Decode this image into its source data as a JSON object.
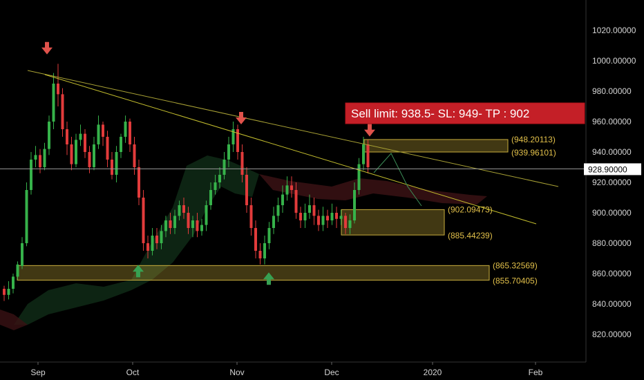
{
  "chart_data": {
    "type": "candlestick",
    "y_ticks": [
      "1020.00000",
      "1000.00000",
      "980.00000",
      "960.00000",
      "940.00000",
      "920.00000",
      "900.00000",
      "880.00000",
      "860.00000",
      "840.00000",
      "820.00000"
    ],
    "y_tick_values": [
      1020,
      1000,
      980,
      960,
      940,
      920,
      900,
      880,
      860,
      840,
      820
    ],
    "x_ticks": [
      "Sep",
      "Oct",
      "Nov",
      "Dec",
      "2020",
      "Feb"
    ],
    "ylim": [
      805,
      1042
    ],
    "current_price": {
      "label": "928.90000",
      "value": 928.9
    },
    "annotation": "Sell limit: 938.5- SL: 949- TP : 902",
    "zones": [
      {
        "top_label": "(948.20113)",
        "bottom_label": "(939.96101)",
        "top": 948.2,
        "bottom": 940.0
      },
      {
        "top_label": "(902.09473)",
        "bottom_label": "(885.44239)",
        "top": 902.1,
        "bottom": 885.4
      },
      {
        "top_label": "(865.32569)",
        "bottom_label": "(855.70405)",
        "top": 865.3,
        "bottom": 855.7
      }
    ],
    "trendlines": [
      {
        "from": [
          "early Sep",
          993
        ],
        "to": [
          "late Jan",
          912
        ]
      },
      {
        "from": [
          "early Sep",
          990
        ],
        "to": [
          "mid Jan",
          894
        ]
      }
    ],
    "markers": [
      {
        "type": "down",
        "near": "Sep peak",
        "value": 1006
      },
      {
        "type": "down",
        "near": "Nov peak",
        "value": 960
      },
      {
        "type": "down",
        "near": "Dec peak",
        "value": 952
      },
      {
        "type": "up",
        "near": "Oct low",
        "value": 864
      },
      {
        "type": "up",
        "near": "Nov low",
        "value": 859
      }
    ],
    "candles": [
      [
        850,
        846,
        852,
        842
      ],
      [
        846,
        850,
        855,
        843
      ],
      [
        850,
        858,
        860,
        847
      ],
      [
        858,
        866,
        868,
        856
      ],
      [
        865,
        880,
        884,
        863
      ],
      [
        880,
        915,
        920,
        878
      ],
      [
        915,
        935,
        940,
        912
      ],
      [
        935,
        938,
        944,
        930
      ],
      [
        938,
        930,
        942,
        926
      ],
      [
        930,
        942,
        946,
        928
      ],
      [
        942,
        960,
        964,
        938
      ],
      [
        960,
        985,
        992,
        955
      ],
      [
        985,
        978,
        998,
        970
      ],
      [
        978,
        955,
        982,
        950
      ],
      [
        955,
        945,
        960,
        938
      ],
      [
        945,
        932,
        950,
        928
      ],
      [
        932,
        948,
        952,
        930
      ],
      [
        948,
        952,
        958,
        944
      ],
      [
        952,
        940,
        955,
        936
      ],
      [
        940,
        930,
        944,
        926
      ],
      [
        930,
        945,
        950,
        928
      ],
      [
        945,
        958,
        964,
        942
      ],
      [
        958,
        950,
        960,
        944
      ],
      [
        950,
        935,
        954,
        930
      ],
      [
        935,
        925,
        940,
        922
      ],
      [
        925,
        940,
        944,
        920
      ],
      [
        940,
        950,
        952,
        936
      ],
      [
        950,
        960,
        964,
        946
      ],
      [
        960,
        945,
        962,
        940
      ],
      [
        945,
        930,
        950,
        925
      ],
      [
        930,
        910,
        935,
        905
      ],
      [
        910,
        880,
        915,
        875
      ],
      [
        880,
        875,
        885,
        870
      ],
      [
        875,
        885,
        890,
        872
      ],
      [
        885,
        880,
        890,
        876
      ],
      [
        880,
        888,
        892,
        876
      ],
      [
        888,
        895,
        898,
        884
      ],
      [
        895,
        890,
        900,
        886
      ],
      [
        890,
        898,
        902,
        886
      ],
      [
        898,
        905,
        908,
        895
      ],
      [
        905,
        900,
        910,
        896
      ],
      [
        900,
        890,
        904,
        886
      ],
      [
        890,
        895,
        898,
        884
      ],
      [
        895,
        888,
        900,
        884
      ],
      [
        888,
        892,
        896,
        885
      ],
      [
        892,
        905,
        908,
        888
      ],
      [
        905,
        915,
        920,
        902
      ],
      [
        915,
        920,
        925,
        912
      ],
      [
        920,
        925,
        930,
        916
      ],
      [
        925,
        935,
        940,
        922
      ],
      [
        935,
        945,
        950,
        930
      ],
      [
        945,
        955,
        960,
        940
      ],
      [
        955,
        940,
        958,
        935
      ],
      [
        940,
        925,
        945,
        920
      ],
      [
        925,
        905,
        930,
        900
      ],
      [
        905,
        890,
        910,
        885
      ],
      [
        890,
        875,
        895,
        870
      ],
      [
        875,
        870,
        880,
        866
      ],
      [
        870,
        880,
        885,
        866
      ],
      [
        880,
        890,
        894,
        876
      ],
      [
        890,
        898,
        904,
        886
      ],
      [
        898,
        905,
        910,
        894
      ],
      [
        905,
        912,
        918,
        900
      ],
      [
        912,
        918,
        924,
        908
      ],
      [
        918,
        915,
        924,
        910
      ],
      [
        915,
        900,
        920,
        896
      ],
      [
        900,
        895,
        904,
        890
      ],
      [
        895,
        900,
        906,
        890
      ],
      [
        900,
        905,
        912,
        896
      ],
      [
        905,
        898,
        910,
        892
      ],
      [
        898,
        892,
        902,
        888
      ],
      [
        892,
        898,
        904,
        888
      ],
      [
        898,
        895,
        902,
        890
      ],
      [
        895,
        900,
        906,
        892
      ],
      [
        900,
        896,
        904,
        890
      ],
      [
        896,
        898,
        902,
        892
      ],
      [
        898,
        890,
        900,
        886
      ],
      [
        890,
        895,
        899,
        886
      ],
      [
        895,
        915,
        920,
        893
      ],
      [
        915,
        932,
        936,
        912
      ],
      [
        932,
        945,
        950,
        928
      ],
      [
        945,
        930,
        948,
        926
      ]
    ]
  }
}
